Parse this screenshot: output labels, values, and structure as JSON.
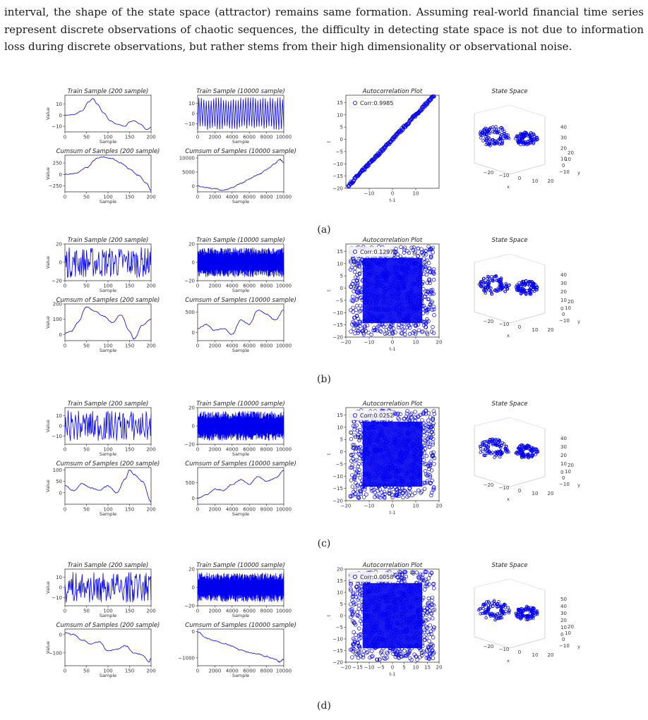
{
  "paragraph": "interval, the shape of the state space (attractor) remains same formation. Assuming real-world financial time series represent discrete observations of chaotic sequences, the difficulty in detecting state space is not due to information loss during discrete observations, but rather stems from their high dimensionality or observational noise.",
  "colors": {
    "series": "#0000ee",
    "text": "#1a1a1a"
  },
  "chart_data": [
    {
      "panel": "a",
      "caption": "(a)",
      "charts": [
        {
          "type": "line",
          "title": "Train Sample (200 sample)",
          "xlabel": "Sample",
          "ylabel": "Value",
          "xlim": [
            0,
            200
          ],
          "ylim": [
            -15,
            18
          ],
          "xticks": [
            0,
            50,
            100,
            150,
            200
          ],
          "yticks": [
            -10,
            0,
            10
          ],
          "series": [
            {
              "x": [
                0,
                20,
                40,
                55,
                65,
                75,
                90,
                105,
                120,
                140,
                150,
                160,
                175,
                190,
                200
              ],
              "y": [
                0,
                0.5,
                4,
                12,
                15,
                10,
                2,
                -5,
                -8,
                -10,
                -6,
                -5,
                -8,
                -13,
                -11
              ]
            }
          ]
        },
        {
          "type": "line",
          "title": "Train Sample (10000 sample)",
          "xlabel": "Sample",
          "ylabel": "",
          "xlim": [
            0,
            10000
          ],
          "ylim": [
            -18,
            18
          ],
          "xticks": [
            0,
            2000,
            4000,
            6000,
            8000,
            10000
          ],
          "yticks": [
            -10,
            0,
            10
          ],
          "pattern": "switching"
        },
        {
          "type": "scatter",
          "title": "Autocorrelation Plot",
          "xlabel": "t-1",
          "ylabel": "t",
          "xlim": [
            -20,
            20
          ],
          "ylim": [
            -20,
            18
          ],
          "xticks": [
            -10,
            0,
            10
          ],
          "yticks": [
            -20,
            -15,
            -10,
            -5,
            0,
            5,
            10,
            15
          ],
          "legend": "Corr:0.9985",
          "pattern": "diagonal"
        },
        {
          "type": "line",
          "title": "Cumsum of Samples (200 sample)",
          "xlabel": "Sample",
          "ylabel": "Value",
          "xlim": [
            0,
            200
          ],
          "ylim": [
            -380,
            420
          ],
          "xticks": [
            0,
            50,
            100,
            150,
            200
          ],
          "yticks": [
            -250,
            0,
            250
          ],
          "series": [
            {
              "x": [
                0,
                25,
                50,
                75,
                90,
                110,
                130,
                150,
                170,
                190,
                200
              ],
              "y": [
                0,
                20,
                150,
                350,
                380,
                340,
                250,
                120,
                -20,
                -200,
                -350
              ]
            }
          ]
        },
        {
          "type": "line",
          "title": "Cumsum of Samples (10000 sample)",
          "xlabel": "Sample",
          "ylabel": "",
          "xlim": [
            0,
            10000
          ],
          "ylim": [
            -2000,
            11000
          ],
          "xticks": [
            0,
            2000,
            4000,
            6000,
            8000,
            10000
          ],
          "yticks": [
            0,
            5000,
            10000
          ],
          "series": [
            {
              "x": [
                0,
                1000,
                2000,
                3000,
                4000,
                5000,
                6000,
                7000,
                8000,
                9000,
                9500,
                10000
              ],
              "y": [
                0,
                -500,
                -1000,
                -1500,
                -500,
                1000,
                2500,
                4000,
                6000,
                8000,
                9500,
                8500
              ]
            }
          ]
        },
        {
          "type": "scatter3d",
          "title": "State Space",
          "xlabel": "x",
          "ylabel": "y",
          "xticks": [
            -20,
            -10,
            0,
            10,
            20
          ],
          "yticks": [
            -20,
            -10,
            0,
            10,
            20
          ],
          "zticks": [
            10,
            20,
            30,
            40
          ]
        }
      ]
    },
    {
      "panel": "b",
      "caption": "(b)",
      "charts": [
        {
          "type": "line",
          "title": "Train Sample (200 sample)",
          "xlabel": "Sample",
          "ylabel": "Value",
          "xlim": [
            0,
            200
          ],
          "ylim": [
            -20,
            20
          ],
          "xticks": [
            0,
            50,
            100,
            150,
            200
          ],
          "yticks": [
            -20,
            0,
            20
          ],
          "pattern": "noise"
        },
        {
          "type": "line",
          "title": "Train Sample (10000 sample)",
          "xlabel": "Sample",
          "ylabel": "",
          "xlim": [
            0,
            10000
          ],
          "ylim": [
            -20,
            20
          ],
          "xticks": [
            0,
            2000,
            4000,
            6000,
            8000,
            10000
          ],
          "yticks": [
            -20,
            0,
            20
          ],
          "pattern": "dense"
        },
        {
          "type": "scatter",
          "title": "Autocorrelation Plot",
          "xlabel": "t-1",
          "ylabel": "t",
          "xlim": [
            -20,
            20
          ],
          "ylim": [
            -20,
            18
          ],
          "xticks": [
            -20,
            -10,
            0,
            10,
            20
          ],
          "yticks": [
            -20,
            -15,
            -10,
            -5,
            0,
            5,
            10,
            15
          ],
          "legend": "Corr:0.1297",
          "pattern": "cloud"
        },
        {
          "type": "line",
          "title": "Cumsum of Samples (200 sample)",
          "xlabel": "Sample",
          "ylabel": "Value",
          "xlim": [
            0,
            200
          ],
          "ylim": [
            -40,
            200
          ],
          "xticks": [
            0,
            50,
            100,
            150,
            200
          ],
          "yticks": [
            0,
            100,
            200
          ],
          "series": [
            {
              "x": [
                0,
                15,
                30,
                50,
                70,
                90,
                110,
                130,
                150,
                160,
                180,
                200
              ],
              "y": [
                10,
                20,
                80,
                180,
                150,
                120,
                80,
                130,
                20,
                -30,
                60,
                100
              ]
            }
          ]
        },
        {
          "type": "line",
          "title": "Cumsum of Samples (10000 sample)",
          "xlabel": "Sample",
          "ylabel": "",
          "xlim": [
            0,
            10000
          ],
          "ylim": [
            -200,
            700
          ],
          "xticks": [
            0,
            2000,
            4000,
            6000,
            8000,
            10000
          ],
          "yticks": [
            0,
            500
          ],
          "series": [
            {
              "x": [
                0,
                1000,
                2000,
                3000,
                4000,
                5000,
                6000,
                7000,
                8000,
                9000,
                10000
              ],
              "y": [
                100,
                200,
                50,
                100,
                -50,
                300,
                200,
                550,
                450,
                300,
                550
              ]
            }
          ]
        },
        {
          "type": "scatter3d",
          "title": "State Space",
          "xlabel": "x",
          "ylabel": "y",
          "xticks": [
            -20,
            -10,
            0,
            10,
            20
          ],
          "yticks": [
            -20,
            -10,
            0,
            10,
            20
          ],
          "zticks": [
            0,
            10,
            20,
            30,
            40
          ]
        }
      ]
    },
    {
      "panel": "c",
      "caption": "(c)",
      "charts": [
        {
          "type": "line",
          "title": "Train Sample (200 sample)",
          "xlabel": "Sample",
          "ylabel": "Value",
          "xlim": [
            0,
            200
          ],
          "ylim": [
            -18,
            18
          ],
          "xticks": [
            0,
            50,
            100,
            150,
            200
          ],
          "yticks": [
            -10,
            0,
            10
          ],
          "pattern": "noise"
        },
        {
          "type": "line",
          "title": "Train Sample (10000 sample)",
          "xlabel": "Sample",
          "ylabel": "",
          "xlim": [
            0,
            10000
          ],
          "ylim": [
            -20,
            20
          ],
          "xticks": [
            0,
            2000,
            4000,
            6000,
            8000,
            10000
          ],
          "yticks": [
            -20,
            0,
            20
          ],
          "pattern": "dense"
        },
        {
          "type": "scatter",
          "title": "Autocorrelation Plot",
          "xlabel": "t-1",
          "ylabel": "t",
          "xlim": [
            -20,
            20
          ],
          "ylim": [
            -20,
            18
          ],
          "xticks": [
            -20,
            -10,
            0,
            10,
            20
          ],
          "yticks": [
            -20,
            -15,
            -10,
            -5,
            0,
            5,
            10,
            15
          ],
          "legend": "Corr:0.0252",
          "pattern": "cloud"
        },
        {
          "type": "line",
          "title": "Cumsum of Samples (200 sample)",
          "xlabel": "Sample",
          "ylabel": "Value",
          "xlim": [
            0,
            200
          ],
          "ylim": [
            -50,
            110
          ],
          "xticks": [
            0,
            50,
            100,
            150,
            200
          ],
          "yticks": [
            0,
            50,
            100
          ],
          "series": [
            {
              "x": [
                0,
                20,
                40,
                60,
                80,
                100,
                120,
                140,
                150,
                160,
                180,
                200
              ],
              "y": [
                30,
                10,
                40,
                20,
                10,
                30,
                0,
                60,
                100,
                80,
                50,
                -40
              ]
            }
          ]
        },
        {
          "type": "line",
          "title": "Cumsum of Samples (10000 sample)",
          "xlabel": "Sample",
          "ylabel": "",
          "xlim": [
            0,
            10000
          ],
          "ylim": [
            -200,
            1000
          ],
          "xticks": [
            0,
            2000,
            4000,
            6000,
            8000,
            10000
          ],
          "yticks": [
            0,
            500
          ],
          "series": [
            {
              "x": [
                0,
                1000,
                2000,
                3000,
                4000,
                5000,
                6000,
                7000,
                8000,
                9000,
                10000
              ],
              "y": [
                0,
                100,
                300,
                250,
                450,
                600,
                450,
                700,
                550,
                650,
                900
              ]
            }
          ]
        },
        {
          "type": "scatter3d",
          "title": "State Space",
          "xlabel": "x",
          "ylabel": "y",
          "xticks": [
            -20,
            -10,
            0,
            10,
            20
          ],
          "yticks": [
            -20,
            -10,
            0,
            10,
            20
          ],
          "zticks": [
            0,
            10,
            20,
            30,
            40
          ]
        }
      ]
    },
    {
      "panel": "d",
      "caption": "(d)",
      "charts": [
        {
          "type": "line",
          "title": "Train Sample (200 sample)",
          "xlabel": "Sample",
          "ylabel": "Value",
          "xlim": [
            0,
            200
          ],
          "ylim": [
            -18,
            18
          ],
          "xticks": [
            0,
            50,
            100,
            150,
            200
          ],
          "yticks": [
            -10,
            0,
            10
          ],
          "pattern": "noise"
        },
        {
          "type": "line",
          "title": "Train Sample (10000 sample)",
          "xlabel": "Sample",
          "ylabel": "",
          "xlim": [
            0,
            10000
          ],
          "ylim": [
            -20,
            20
          ],
          "xticks": [
            0,
            2000,
            4000,
            6000,
            8000,
            10000
          ],
          "yticks": [
            -20,
            0,
            20
          ],
          "pattern": "dense"
        },
        {
          "type": "scatter",
          "title": "Autocorrelation Plot",
          "xlabel": "t-1",
          "ylabel": "t",
          "xlim": [
            -20,
            20
          ],
          "ylim": [
            -20,
            20
          ],
          "xticks": [
            -20,
            -15,
            -10,
            -5,
            0,
            5,
            10,
            15,
            20
          ],
          "yticks": [
            -20,
            -15,
            -10,
            -5,
            0,
            5,
            10,
            15,
            20
          ],
          "legend": "Corr:0.0058",
          "pattern": "cloud"
        },
        {
          "type": "line",
          "title": "Cumsum of Samples (200 sample)",
          "xlabel": "Sample",
          "ylabel": "Value",
          "xlim": [
            0,
            200
          ],
          "ylim": [
            -170,
            30
          ],
          "xticks": [
            0,
            50,
            100,
            150,
            200
          ],
          "yticks": [
            -100,
            0
          ],
          "series": [
            {
              "x": [
                0,
                20,
                40,
                60,
                80,
                100,
                120,
                140,
                160,
                180,
                195,
                200
              ],
              "y": [
                10,
                0,
                -30,
                -50,
                -40,
                -90,
                -80,
                -60,
                -100,
                -110,
                -150,
                -130
              ]
            }
          ]
        },
        {
          "type": "line",
          "title": "Cumsum of Samples (10000 sample)",
          "xlabel": "Sample",
          "ylabel": "",
          "xlim": [
            0,
            10000
          ],
          "ylim": [
            -1300,
            100
          ],
          "xticks": [
            0,
            2000,
            4000,
            6000,
            8000,
            10000
          ],
          "yticks": [
            -1000,
            0
          ],
          "series": [
            {
              "x": [
                0,
                1000,
                2000,
                3000,
                4000,
                5000,
                6000,
                7000,
                8000,
                9000,
                9500,
                10000
              ],
              "y": [
                0,
                -250,
                -350,
                -450,
                -550,
                -700,
                -800,
                -850,
                -950,
                -1050,
                -1150,
                -1050
              ]
            }
          ]
        },
        {
          "type": "scatter3d",
          "title": "State Space",
          "xlabel": "x",
          "ylabel": "y",
          "xticks": [
            -20,
            -10,
            0,
            10,
            20
          ],
          "yticks": [
            -20,
            -10,
            0,
            10,
            20
          ],
          "zticks": [
            0,
            10,
            20,
            30,
            40,
            50
          ]
        }
      ]
    }
  ]
}
